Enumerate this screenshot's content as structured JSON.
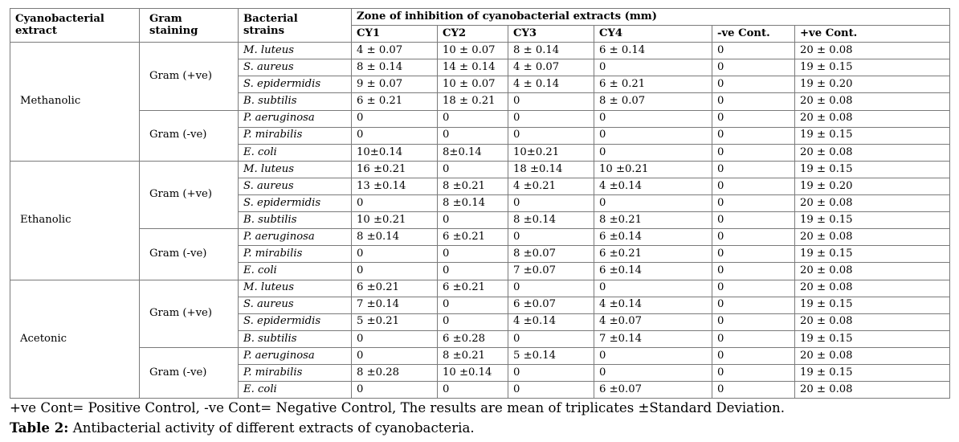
{
  "headers": {
    "extract": [
      "Cyanobacterial",
      "extract"
    ],
    "gram": [
      "Gram",
      "staining"
    ],
    "strains": [
      "Bacterial",
      "strains"
    ],
    "zone": "Zone of inhibition of cyanobacterial extracts (mm)",
    "cols": [
      "CY1",
      "CY2",
      "CY3",
      "CY4",
      "-ve Cont.",
      "+ve Cont."
    ]
  },
  "groups": [
    {
      "extract": "Methanolic",
      "subgroups": [
        {
          "gram": "Gram (+ve)",
          "rows": [
            {
              "strain": "M. luteus",
              "values": [
                "4 ± 0.07",
                "10 ± 0.07",
                "8 ± 0.14",
                "6 ± 0.14",
                "0",
                "20 ± 0.08"
              ]
            },
            {
              "strain": "S. aureus",
              "values": [
                "8 ± 0.14",
                "14 ± 0.14",
                "4 ± 0.07",
                "0",
                "0",
                "19 ± 0.15"
              ]
            },
            {
              "strain": "S. epidermidis",
              "values": [
                "9 ± 0.07",
                "10 ± 0.07",
                "4 ± 0.14",
                "6 ± 0.21",
                "0",
                "19 ± 0.20"
              ]
            },
            {
              "strain": "B. subtilis",
              "values": [
                "6 ± 0.21",
                "18 ± 0.21",
                "0",
                "8 ± 0.07",
                "0",
                "20 ± 0.08"
              ]
            }
          ]
        },
        {
          "gram": "Gram (-ve)",
          "rows": [
            {
              "strain": "P. aeruginosa",
              "values": [
                "0",
                "0",
                "0",
                "0",
                "0",
                "20 ± 0.08"
              ]
            },
            {
              "strain": "P. mirabilis",
              "values": [
                "0",
                "0",
                "0",
                "0",
                "0",
                "19 ± 0.15"
              ]
            },
            {
              "strain": "E. coli",
              "values": [
                "10±0.14",
                "8±0.14",
                "10±0.21",
                "0",
                "0",
                "20 ± 0.08"
              ]
            }
          ]
        }
      ]
    },
    {
      "extract": "Ethanolic",
      "subgroups": [
        {
          "gram": "Gram (+ve)",
          "rows": [
            {
              "strain": "M. luteus",
              "values": [
                "16 ±0.21",
                "0",
                "18 ±0.14",
                "10 ±0.21",
                "0",
                "19 ± 0.15"
              ]
            },
            {
              "strain": "S. aureus",
              "values": [
                "13 ±0.14",
                "8 ±0.21",
                "4 ±0.21",
                "4 ±0.14",
                "0",
                "19 ± 0.20"
              ]
            },
            {
              "strain": "S. epidermidis",
              "values": [
                "0",
                "8 ±0.14",
                "0",
                "0",
                "0",
                "20 ± 0.08"
              ]
            },
            {
              "strain": "B. subtilis",
              "values": [
                "10 ±0.21",
                "0",
                "8 ±0.14",
                "8 ±0.21",
                "0",
                "19 ± 0.15"
              ]
            }
          ]
        },
        {
          "gram": "Gram (-ve)",
          "rows": [
            {
              "strain": "P. aeruginosa",
              "values": [
                "8 ±0.14",
                "6 ±0.21",
                "0",
                "6 ±0.14",
                "0",
                "20 ± 0.08"
              ]
            },
            {
              "strain": "P. mirabilis",
              "values": [
                "0",
                "0",
                "8 ±0.07",
                "6 ±0.21",
                "0",
                "19 ± 0.15"
              ]
            },
            {
              "strain": "E. coli",
              "values": [
                "0",
                "0",
                "7 ±0.07",
                "6 ±0.14",
                "0",
                "20 ± 0.08"
              ]
            }
          ]
        }
      ]
    },
    {
      "extract": "Acetonic",
      "subgroups": [
        {
          "gram": "Gram (+ve)",
          "rows": [
            {
              "strain": "M. luteus",
              "values": [
                "6 ±0.21",
                "6 ±0.21",
                "0",
                "0",
                "0",
                "20 ± 0.08"
              ]
            },
            {
              "strain": "S. aureus",
              "values": [
                "7 ±0.14",
                "0",
                "6 ±0.07",
                "4 ±0.14",
                "0",
                "19 ± 0.15"
              ]
            },
            {
              "strain": "S. epidermidis",
              "values": [
                "5 ±0.21",
                "0",
                "4 ±0.14",
                "4 ±0.07",
                "0",
                "20 ± 0.08"
              ]
            },
            {
              "strain": "B. subtilis",
              "values": [
                "0",
                "6 ±0.28",
                "0",
                "7 ±0.14",
                "0",
                "19 ± 0.15"
              ]
            }
          ]
        },
        {
          "gram": "Gram (-ve)",
          "rows": [
            {
              "strain": "P. aeruginosa",
              "values": [
                "0",
                "8 ±0.21",
                "5 ±0.14",
                "0",
                "0",
                "20 ± 0.08"
              ]
            },
            {
              "strain": "P. mirabilis",
              "values": [
                "8 ±0.28",
                "10 ±0.14",
                "0",
                "0",
                "0",
                "19 ± 0.15"
              ]
            },
            {
              "strain": "E. coli",
              "values": [
                "0",
                "0",
                "0",
                "6 ±0.07",
                "0",
                "20 ± 0.08"
              ]
            }
          ]
        }
      ]
    }
  ],
  "note": "+ve Cont= Positive Control, -ve Cont= Negative Control, The results are mean of triplicates ±Standard Deviation.",
  "caption": {
    "label": "Table 2:",
    "text": " Antibacterial activity of different extracts of cyanobacteria."
  }
}
